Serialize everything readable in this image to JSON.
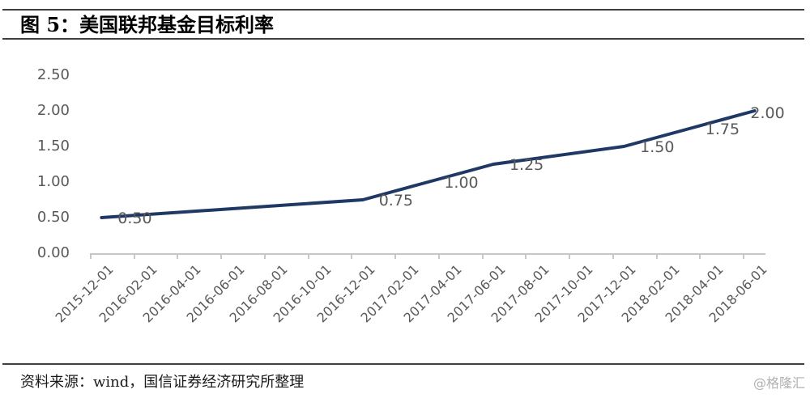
{
  "header": {
    "title": "图 5：美国联邦基金目标利率"
  },
  "footer": {
    "source": "资料来源：wind，国信证券经济研究所整理",
    "watermark": "@格隆汇"
  },
  "chart_data": {
    "type": "line",
    "title": "美国联邦基金目标利率",
    "series": [
      {
        "name": "美国联邦基金目标利率",
        "x": [
          "2015-12-01",
          "2016-12-01",
          "2017-03-01",
          "2017-06-01",
          "2017-12-01",
          "2018-03-01",
          "2018-06-01"
        ],
        "months_from_start": [
          0,
          12,
          15,
          18,
          24,
          27,
          30
        ],
        "values": [
          0.5,
          0.75,
          1.0,
          1.25,
          1.5,
          1.75,
          2.0
        ],
        "data_labels": [
          "0.50",
          "0.75",
          "1.00",
          "1.25",
          "1.50",
          "1.75",
          "2.00"
        ],
        "color": "#1f3864"
      }
    ],
    "x_axis": {
      "tick_labels": [
        "2015-12-01",
        "2016-02-01",
        "2016-04-01",
        "2016-06-01",
        "2016-08-01",
        "2016-10-01",
        "2016-12-01",
        "2017-02-01",
        "2017-04-01",
        "2017-06-01",
        "2017-08-01",
        "2017-10-01",
        "2017-12-01",
        "2018-02-01",
        "2018-04-01",
        "2018-06-01"
      ],
      "label_rotation_deg": 45,
      "months_total": 31
    },
    "y_axis": {
      "tick_labels": [
        "0.00",
        "0.50",
        "1.00",
        "1.50",
        "2.00",
        "2.50"
      ],
      "min": 0.0,
      "max": 2.5
    },
    "grid": false,
    "legend": false,
    "colors": {
      "line": "#1f3864",
      "axis": "#c6c6c6",
      "axis_text": "#595959",
      "data_label_text": "#595959"
    }
  }
}
